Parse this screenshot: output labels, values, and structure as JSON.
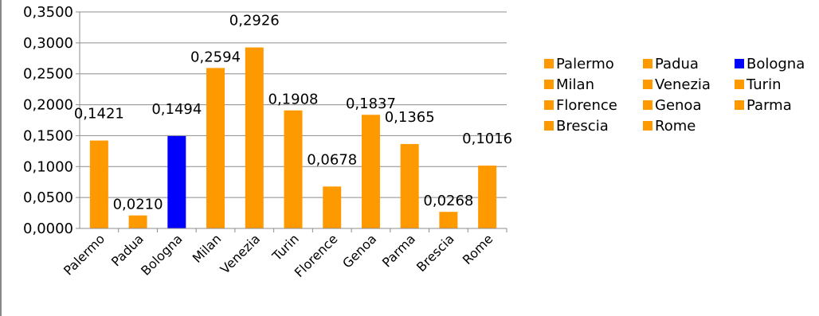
{
  "chart_data": {
    "type": "bar",
    "categories": [
      "Palermo",
      "Padua",
      "Bologna",
      "Milan",
      "Venezia",
      "Turin",
      "Florence",
      "Genoa",
      "Parma",
      "Brescia",
      "Rome"
    ],
    "values": [
      0.1421,
      0.021,
      0.1494,
      0.2594,
      0.2926,
      0.1908,
      0.0678,
      0.1837,
      0.1365,
      0.0268,
      0.1016
    ],
    "data_labels": [
      "0,1421",
      "0,0210",
      "0,1494",
      "0,2594",
      "0,2926",
      "0,1908",
      "0,0678",
      "0,1837",
      "0,1365",
      "0,0268",
      "0,1016"
    ],
    "bar_colors": [
      "#ff9900",
      "#ff9900",
      "#0000ff",
      "#ff9900",
      "#ff9900",
      "#ff9900",
      "#ff9900",
      "#ff9900",
      "#ff9900",
      "#ff9900",
      "#ff9900"
    ],
    "y_ticks": [
      0,
      0.05,
      0.1,
      0.15,
      0.2,
      0.25,
      0.3,
      0.35
    ],
    "y_tick_labels": [
      "0,0000",
      "0,0500",
      "0,1000",
      "0,1500",
      "0,2000",
      "0,2500",
      "0,3000",
      "0,3500"
    ],
    "ylim": [
      0,
      0.35
    ],
    "grid": true,
    "legend": {
      "placement": "right",
      "entries": [
        {
          "label": "Palermo",
          "color": "#ff9900"
        },
        {
          "label": "Padua",
          "color": "#ff9900"
        },
        {
          "label": "Bologna",
          "color": "#0000ff"
        },
        {
          "label": "Milan",
          "color": "#ff9900"
        },
        {
          "label": "Venezia",
          "color": "#ff9900"
        },
        {
          "label": "Turin",
          "color": "#ff9900"
        },
        {
          "label": "Florence",
          "color": "#ff9900"
        },
        {
          "label": "Genoa",
          "color": "#ff9900"
        },
        {
          "label": "Parma",
          "color": "#ff9900"
        },
        {
          "label": "Brescia",
          "color": "#ff9900"
        },
        {
          "label": "Rome",
          "color": "#ff9900"
        }
      ]
    },
    "title": "",
    "xlabel": "",
    "ylabel": ""
  }
}
